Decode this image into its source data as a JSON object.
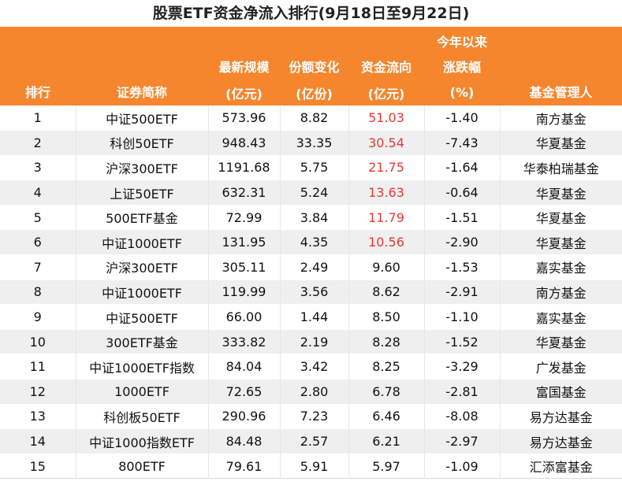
{
  "title": "股票ETF资金净流入排行(9月18日至9月22日)",
  "headers": {
    "rank": "排行",
    "name": "证券简称",
    "scale_top": "最新规模",
    "scale_bottom": "(亿元)",
    "share_top": "份额变化",
    "share_bottom": "(亿份)",
    "flow_top": "资金流向",
    "flow_bottom": "(亿元)",
    "ytd_top1": "今年以来",
    "ytd_top2": "涨跌幅",
    "ytd_bottom": "(%)",
    "manager": "基金管理人"
  },
  "colors": {
    "header_bg": "#F5862E",
    "positive_flow": "#E53935",
    "stripe": "#EFEFEF"
  },
  "rows": [
    {
      "rank": "1",
      "name": "中证500ETF",
      "scale": "573.96",
      "share": "8.82",
      "flow": "51.03",
      "ytd": "-1.40",
      "manager": "南方基金",
      "highlight": true
    },
    {
      "rank": "2",
      "name": "科创50ETF",
      "scale": "948.43",
      "share": "33.35",
      "flow": "30.54",
      "ytd": "-7.43",
      "manager": "华夏基金",
      "highlight": true
    },
    {
      "rank": "3",
      "name": "沪深300ETF",
      "scale": "1191.68",
      "share": "5.75",
      "flow": "21.75",
      "ytd": "-1.64",
      "manager": "华泰柏瑞基金",
      "highlight": true
    },
    {
      "rank": "4",
      "name": "上证50ETF",
      "scale": "632.31",
      "share": "5.24",
      "flow": "13.63",
      "ytd": "-0.64",
      "manager": "华夏基金",
      "highlight": true
    },
    {
      "rank": "5",
      "name": "500ETF基金",
      "scale": "72.99",
      "share": "3.84",
      "flow": "11.79",
      "ytd": "-1.51",
      "manager": "华夏基金",
      "highlight": true
    },
    {
      "rank": "6",
      "name": "中证1000ETF",
      "scale": "131.95",
      "share": "4.35",
      "flow": "10.56",
      "ytd": "-2.90",
      "manager": "华夏基金",
      "highlight": true
    },
    {
      "rank": "7",
      "name": "沪深300ETF",
      "scale": "305.11",
      "share": "2.49",
      "flow": "9.60",
      "ytd": "-1.53",
      "manager": "嘉实基金",
      "highlight": false
    },
    {
      "rank": "8",
      "name": "中证1000ETF",
      "scale": "119.99",
      "share": "3.56",
      "flow": "8.62",
      "ytd": "-2.91",
      "manager": "南方基金",
      "highlight": false
    },
    {
      "rank": "9",
      "name": "中证500ETF",
      "scale": "66.00",
      "share": "1.44",
      "flow": "8.50",
      "ytd": "-1.10",
      "manager": "嘉实基金",
      "highlight": false
    },
    {
      "rank": "10",
      "name": "300ETF基金",
      "scale": "333.82",
      "share": "2.19",
      "flow": "8.28",
      "ytd": "-1.52",
      "manager": "华夏基金",
      "highlight": false
    },
    {
      "rank": "11",
      "name": "中证1000ETF指数",
      "scale": "84.04",
      "share": "3.42",
      "flow": "8.25",
      "ytd": "-3.29",
      "manager": "广发基金",
      "highlight": false
    },
    {
      "rank": "12",
      "name": "1000ETF",
      "scale": "72.65",
      "share": "2.80",
      "flow": "6.78",
      "ytd": "-2.81",
      "manager": "富国基金",
      "highlight": false
    },
    {
      "rank": "13",
      "name": "科创板50ETF",
      "scale": "290.96",
      "share": "7.23",
      "flow": "6.46",
      "ytd": "-8.08",
      "manager": "易方达基金",
      "highlight": false
    },
    {
      "rank": "14",
      "name": "中证1000指数ETF",
      "scale": "84.48",
      "share": "2.57",
      "flow": "6.21",
      "ytd": "-2.97",
      "manager": "易方达基金",
      "highlight": false
    },
    {
      "rank": "15",
      "name": "800ETF",
      "scale": "79.61",
      "share": "5.91",
      "flow": "5.97",
      "ytd": "-1.09",
      "manager": "汇添富基金",
      "highlight": false
    }
  ]
}
